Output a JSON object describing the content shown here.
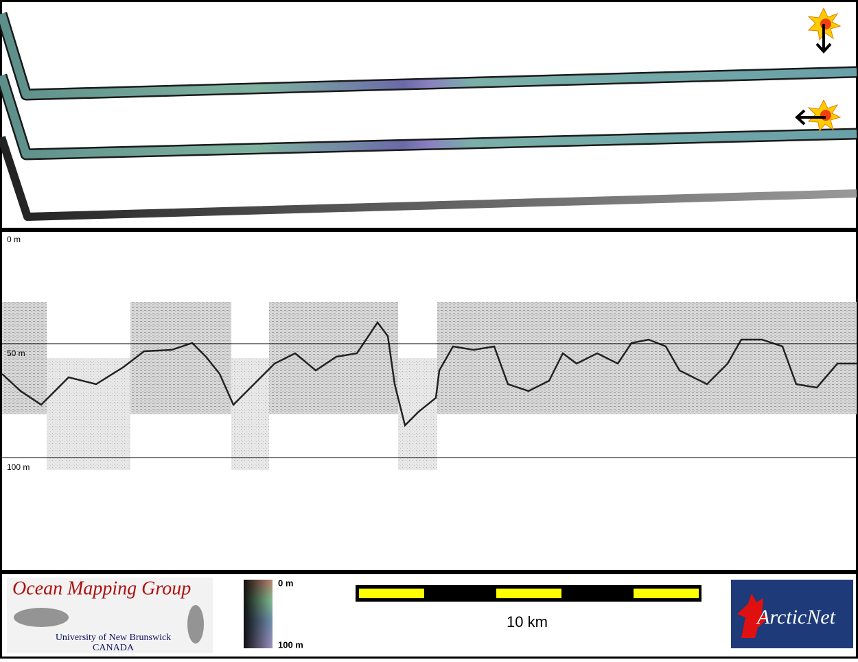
{
  "profile": {
    "depth_labels": [
      "0 m",
      "50 m",
      "100 m"
    ]
  },
  "colorbar": {
    "top_label": "0 m",
    "bottom_label": "100 m"
  },
  "scale_bar": {
    "label": "10 km"
  },
  "logos": {
    "omg": {
      "title": "Ocean Mapping Group",
      "line1": "University of New Brunswick",
      "line2": "CANADA"
    },
    "arcticnet": {
      "name": "ArcticNet"
    }
  }
}
